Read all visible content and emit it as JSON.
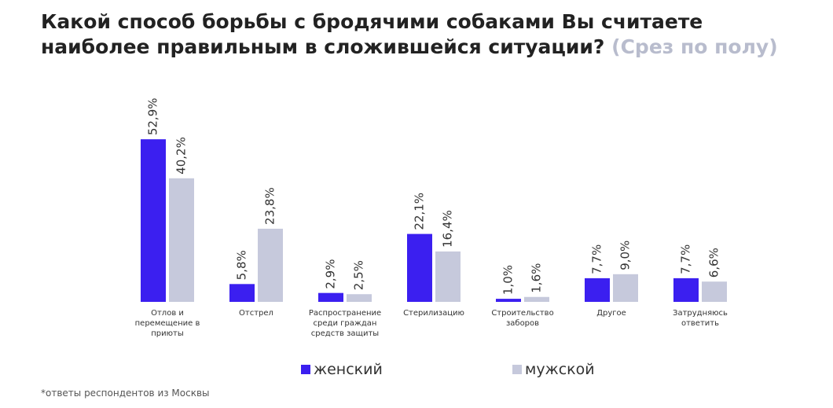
{
  "chart_data": {
    "type": "bar",
    "title": "Какой способ борьбы с бродячими собаками Вы считаете наиболее правильным в сложившейся ситуации?",
    "subtitle": "(Срез по полу)",
    "categories": [
      "Отлов и перемещение в приюты",
      "Отстрел",
      "Распространение среди граждан средств защиты",
      "Стерилизацию",
      "Строительство заборов",
      "Другое",
      "Затрудняюсь ответить"
    ],
    "series": [
      {
        "name": "женский",
        "color": "#3b1ff0",
        "values": [
          52.9,
          5.8,
          2.9,
          22.1,
          1.0,
          7.7,
          7.7
        ],
        "value_labels": [
          "52,9%",
          "5,8%",
          "2,9%",
          "22,1%",
          "1,0%",
          "7,7%",
          "7,7%"
        ]
      },
      {
        "name": "мужской",
        "color": "#c6c9dc",
        "values": [
          40.2,
          23.8,
          2.5,
          16.4,
          1.6,
          9.0,
          6.6
        ],
        "value_labels": [
          "40,2%",
          "23,8%",
          "2,5%",
          "16,4%",
          "1,6%",
          "9,0%",
          "6,6%"
        ]
      }
    ],
    "footnote": "*ответы респондентов из Москвы"
  }
}
